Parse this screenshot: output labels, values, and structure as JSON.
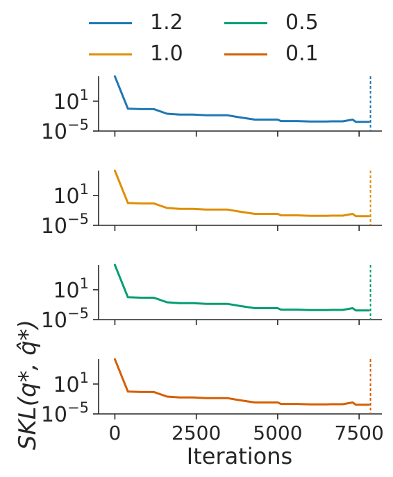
{
  "chart_data": {
    "type": "line",
    "xlabel": "Iterations",
    "ylabel": "SKL(q*, q̂*)",
    "yscale": "log",
    "xlim": [
      -500,
      8200
    ],
    "ylim_exp": [
      -5,
      6
    ],
    "x_ticks": [
      0,
      2500,
      5000,
      7500
    ],
    "x_tick_labels": [
      "0",
      "2500",
      "5000",
      "7500"
    ],
    "y_ticks": [
      {
        "base": "10",
        "exp": "1"
      },
      {
        "base": "10",
        "exp": "−5"
      }
    ],
    "y_tick_values": [
      10,
      1e-05
    ],
    "legend": {
      "placement": "top",
      "columns": 2
    },
    "vline_x": 7850,
    "series": [
      {
        "name": "1.2",
        "color": "#1f77b4",
        "x": [
          0,
          400,
          800,
          1200,
          1600,
          2000,
          2400,
          2800,
          3200,
          3450,
          3800,
          4300,
          4800,
          5000,
          5100,
          5600,
          6000,
          6500,
          6650,
          7000,
          7300,
          7400,
          7800
        ],
        "y": [
          1000000.0,
          0.3,
          0.25,
          0.25,
          0.03,
          0.02,
          0.02,
          0.015,
          0.015,
          0.015,
          0.006,
          0.002,
          0.002,
          0.002,
          0.001,
          0.001,
          0.0008,
          0.0008,
          0.0009,
          0.0009,
          0.002,
          0.0007,
          0.0007
        ]
      },
      {
        "name": "1.0",
        "color": "#de8f05",
        "x": [
          0,
          400,
          800,
          1200,
          1600,
          2000,
          2400,
          2800,
          3200,
          3450,
          3800,
          4300,
          4800,
          5000,
          5100,
          5600,
          6000,
          6500,
          6650,
          7000,
          7300,
          7400,
          7800
        ],
        "y": [
          1000000.0,
          0.3,
          0.25,
          0.25,
          0.03,
          0.02,
          0.02,
          0.015,
          0.015,
          0.015,
          0.006,
          0.002,
          0.002,
          0.002,
          0.001,
          0.001,
          0.0008,
          0.0008,
          0.0009,
          0.0009,
          0.002,
          0.0007,
          0.0007
        ]
      },
      {
        "name": "0.5",
        "color": "#029e73",
        "x": [
          0,
          400,
          800,
          1200,
          1600,
          2000,
          2400,
          2800,
          3200,
          3450,
          3800,
          4300,
          4800,
          5000,
          5100,
          5600,
          6000,
          6500,
          6650,
          7000,
          7300,
          7400,
          7800
        ],
        "y": [
          1000000.0,
          0.3,
          0.25,
          0.25,
          0.03,
          0.02,
          0.02,
          0.015,
          0.015,
          0.015,
          0.006,
          0.002,
          0.002,
          0.002,
          0.001,
          0.001,
          0.0008,
          0.0008,
          0.0009,
          0.0009,
          0.002,
          0.0007,
          0.0007
        ]
      },
      {
        "name": "0.1",
        "color": "#d55e00",
        "x": [
          0,
          400,
          800,
          1200,
          1600,
          2000,
          2400,
          2800,
          3200,
          3450,
          3800,
          4300,
          4800,
          5000,
          5100,
          5600,
          6000,
          6500,
          6650,
          7000,
          7300,
          7400,
          7800
        ],
        "y": [
          1000000.0,
          0.3,
          0.25,
          0.25,
          0.03,
          0.02,
          0.02,
          0.015,
          0.015,
          0.015,
          0.006,
          0.002,
          0.002,
          0.002,
          0.001,
          0.001,
          0.0008,
          0.0008,
          0.0009,
          0.0009,
          0.002,
          0.0007,
          0.0007
        ]
      }
    ]
  }
}
